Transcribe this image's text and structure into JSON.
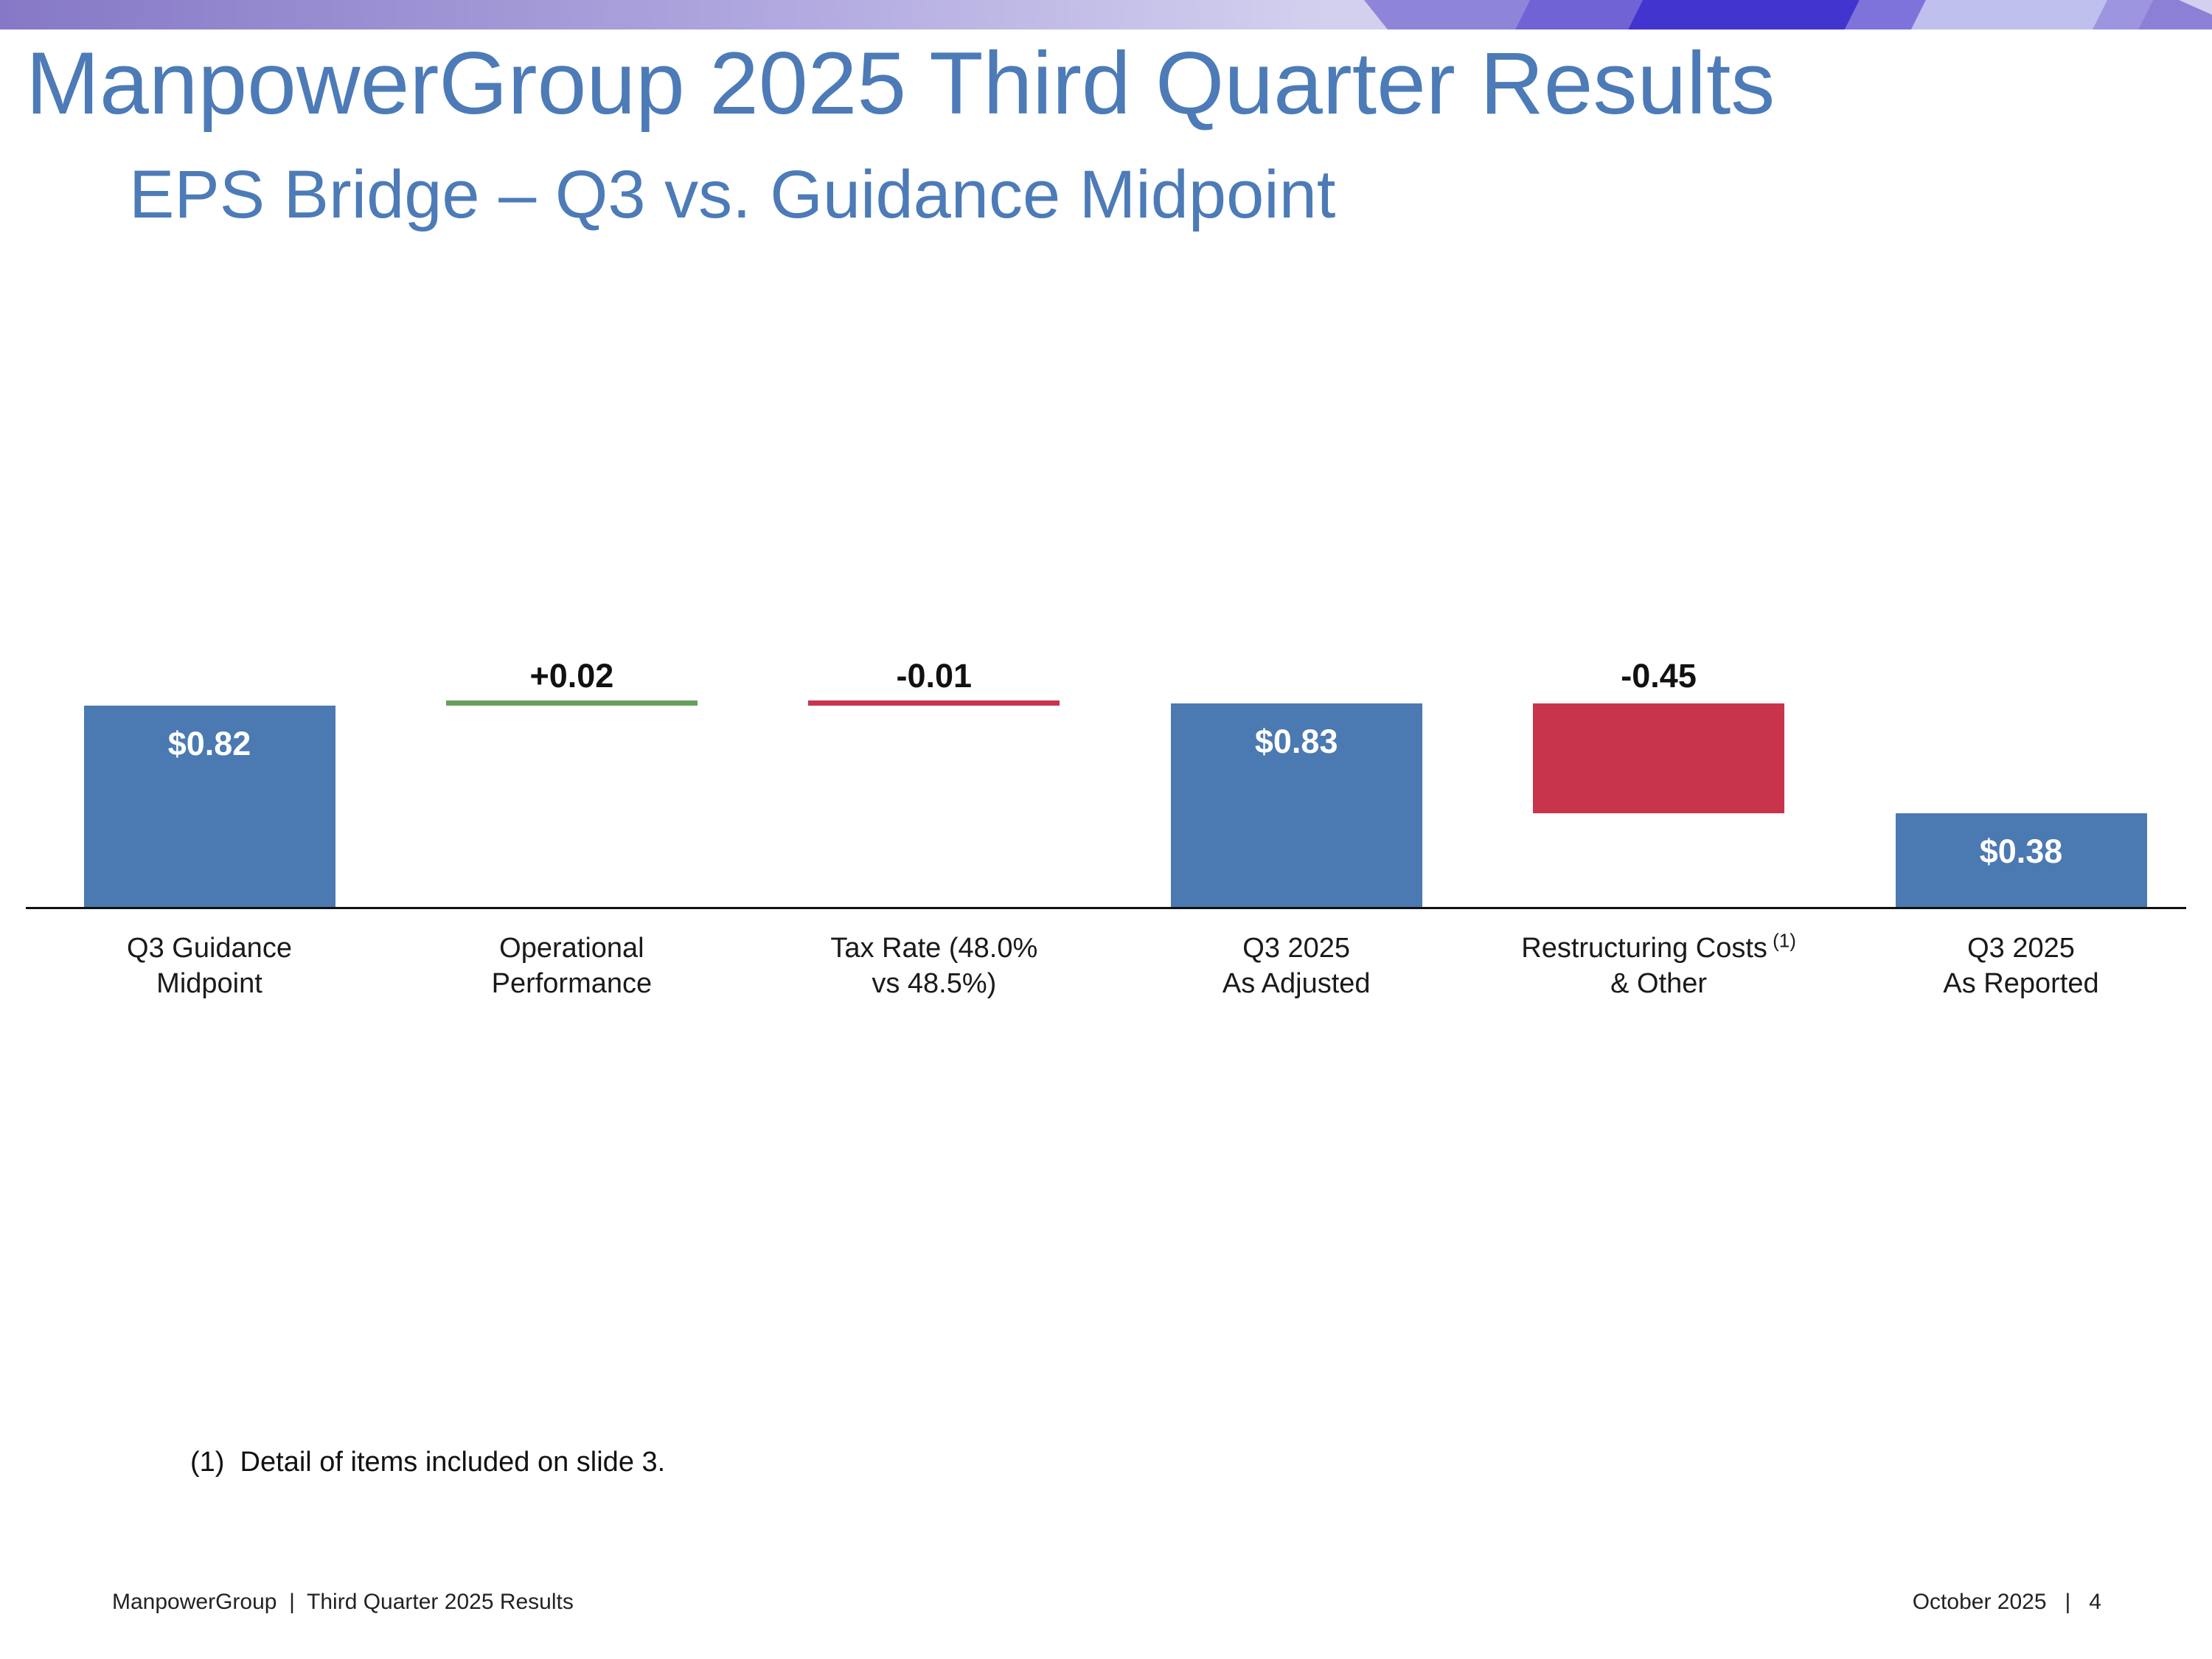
{
  "header": {
    "title": "ManpowerGroup 2025 Third Quarter Results",
    "subtitle": "EPS Bridge – Q3 vs. Guidance Midpoint"
  },
  "colors": {
    "title_blue": "#4C7BB7",
    "bar_blue": "#4B79B2",
    "bar_red": "#C9344D",
    "bar_green": "#689F5E",
    "axis_black": "#111111",
    "banner_base_gradient": [
      "#8678C6",
      "#B0A8DF",
      "#D3D0EF"
    ],
    "banner_beams": [
      "#8E85D9",
      "#6F63D5",
      "#4134CF",
      "#7D73DA",
      "#C0C0EE",
      "#9E95E1",
      "#8B80D6",
      "#D2CFEF"
    ]
  },
  "chart_data": {
    "type": "waterfall",
    "title": "EPS Bridge – Q3 vs. Guidance Midpoint",
    "ylim": [
      0,
      0.9
    ],
    "grid": false,
    "axis": "baseline-only",
    "categories": [
      "Q3 Guidance Midpoint",
      "Operational Performance",
      "Tax Rate (48.0% vs 48.5%)",
      "Q3 2025 As Adjusted",
      "Restructuring Costs (1) & Other",
      "Q3 2025 As Reported"
    ],
    "values": [
      0.82,
      0.02,
      -0.01,
      0.83,
      -0.45,
      0.38
    ],
    "bars": [
      {
        "category_line1": "Q3 Guidance",
        "category_line2": "Midpoint",
        "from": 0,
        "to": 0.82,
        "color": "blue",
        "value_label": "$0.82",
        "label_position": "inside"
      },
      {
        "category_line1": "Operational",
        "category_line2": "Performance",
        "from": 0.82,
        "to": 0.84,
        "color": "green",
        "value_label": "+0.02",
        "label_position": "above"
      },
      {
        "category_line1": "Tax Rate (48.0%",
        "category_line2": "vs 48.5%)",
        "from": 0.84,
        "to": 0.83,
        "color": "red",
        "value_label": "-0.01",
        "label_position": "above"
      },
      {
        "category_line1": "Q3 2025",
        "category_line2": "As Adjusted",
        "from": 0,
        "to": 0.83,
        "color": "blue",
        "value_label": "$0.83",
        "label_position": "inside"
      },
      {
        "category_line1": "Restructuring Costs",
        "category_sup": "(1)",
        "category_line2": "& Other",
        "from": 0.83,
        "to": 0.38,
        "color": "red",
        "value_label": "-0.45",
        "label_position": "above"
      },
      {
        "category_line1": "Q3 2025",
        "category_line2": "As Reported",
        "from": 0,
        "to": 0.38,
        "color": "blue",
        "value_label": "$0.38",
        "label_position": "inside"
      }
    ]
  },
  "footnote": {
    "text": "(1)  Detail of items included on slide 3."
  },
  "footer": {
    "left": "ManpowerGroup  |  Third Quarter 2025 Results",
    "right": "October 2025   |   4"
  }
}
